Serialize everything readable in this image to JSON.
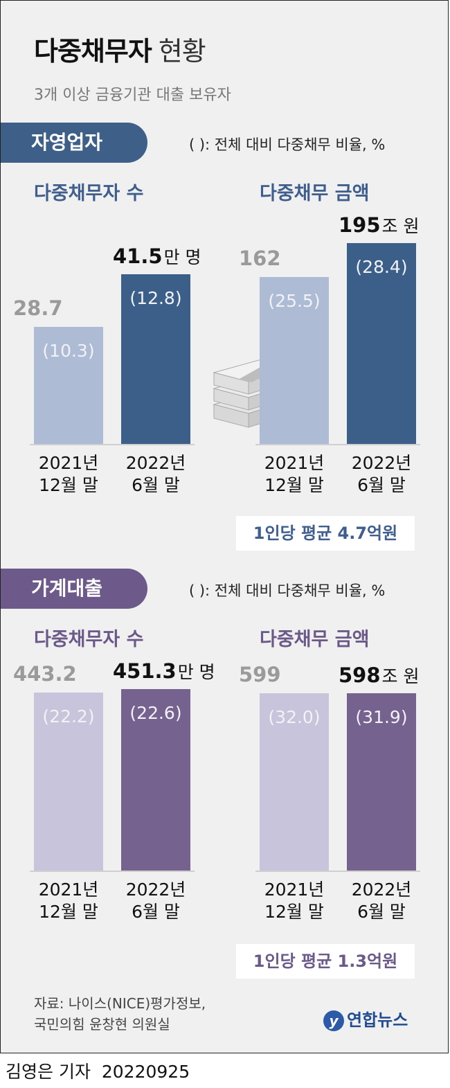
{
  "title": {
    "bold": "다중채무자",
    "light": "현황"
  },
  "subtitle": "3개 이상 금융기관 대출 보유자",
  "sections": [
    {
      "tag": "자영업자",
      "note": "( ): 전체 대비 다중채무 비율, %",
      "avg_note": "1인당 평균 4.7억원",
      "colors": {
        "prev": "#aebbd5",
        "cur": "#3c5f8a",
        "accent": "#3f5e8e"
      }
    },
    {
      "tag": "가계대출",
      "note": "( ): 전체 대비 다중채무 비율, %",
      "avg_note": "1인당 평균 1.3억원",
      "colors": {
        "prev": "#c8c4dc",
        "cur": "#76628f",
        "accent": "#6a5989"
      }
    }
  ],
  "chart_data": [
    {
      "type": "bar",
      "title": "다중채무자 수",
      "group": "자영업자",
      "categories": [
        "2021년 12월 말",
        "2022년 6월 말"
      ],
      "category_lines": [
        [
          "2021년",
          "12월 말"
        ],
        [
          "2022년",
          "6월 말"
        ]
      ],
      "values": [
        28.7,
        41.5
      ],
      "value_labels": [
        "28.7",
        "41.5"
      ],
      "unit": "만 명",
      "ratios": [
        "(10.3)",
        "(12.8)"
      ]
    },
    {
      "type": "bar",
      "title": "다중채무 금액",
      "group": "자영업자",
      "categories": [
        "2021년 12월 말",
        "2022년 6월 말"
      ],
      "category_lines": [
        [
          "2021년",
          "12월 말"
        ],
        [
          "2022년",
          "6월 말"
        ]
      ],
      "values": [
        162,
        195
      ],
      "value_labels": [
        "162",
        "195"
      ],
      "unit": "조 원",
      "ratios": [
        "(25.5)",
        "(28.4)"
      ]
    },
    {
      "type": "bar",
      "title": "다중채무자 수",
      "group": "가계대출",
      "categories": [
        "2021년 12월 말",
        "2022년 6월 말"
      ],
      "category_lines": [
        [
          "2021년",
          "12월 말"
        ],
        [
          "2022년",
          "6월 말"
        ]
      ],
      "values": [
        443.2,
        451.3
      ],
      "value_labels": [
        "443.2",
        "451.3"
      ],
      "unit": "만 명",
      "ratios": [
        "(22.2)",
        "(22.6)"
      ]
    },
    {
      "type": "bar",
      "title": "다중채무 금액",
      "group": "가계대출",
      "categories": [
        "2021년 12월 말",
        "2022년 6월 말"
      ],
      "category_lines": [
        [
          "2021년",
          "12월 말"
        ],
        [
          "2022년",
          "6월 말"
        ]
      ],
      "values": [
        599,
        598
      ],
      "value_labels": [
        "599",
        "598"
      ],
      "unit": "조 원",
      "ratios": [
        "(32.0)",
        "(31.9)"
      ]
    }
  ],
  "source": {
    "line1": "자료: 나이스(NICE)평가정보,",
    "line2": "국민의힘 윤창현 의원실"
  },
  "logo": {
    "mark": "y",
    "text": "연합뉴스"
  },
  "footer": {
    "reporter": "김영은 기자",
    "date": "20220925"
  },
  "icons": {
    "money": "money-stack-icon"
  }
}
